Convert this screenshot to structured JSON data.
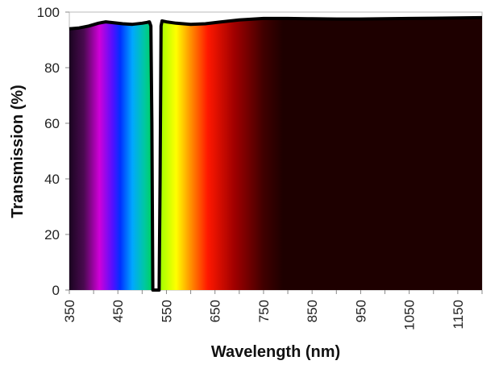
{
  "chart_data": {
    "type": "area",
    "title": "",
    "xlabel": "Wavelength (nm)",
    "ylabel": "Transmission (%)",
    "xlim": [
      350,
      1200
    ],
    "ylim": [
      0,
      100
    ],
    "x_ticks": [
      "350",
      "450",
      "550",
      "650",
      "750",
      "850",
      "950",
      "1050",
      "1150"
    ],
    "y_ticks": [
      "0",
      "20",
      "40",
      "60",
      "80",
      "100"
    ],
    "grid": false,
    "legend": "none",
    "series": [
      {
        "x": [
          350,
          370,
          390,
          410,
          425,
          440,
          460,
          480,
          500,
          510,
          515,
          518,
          520,
          522,
          530,
          535,
          537,
          539,
          541,
          550,
          570,
          600,
          630,
          660,
          700,
          750,
          800,
          850,
          900,
          950,
          1000,
          1050,
          1100,
          1150,
          1200
        ],
        "y": [
          94,
          94.3,
          95,
          96,
          96.5,
          96.2,
          95.8,
          95.6,
          96,
          96.3,
          96.5,
          95,
          60,
          0,
          0,
          0,
          40,
          95,
          96.8,
          96.5,
          96,
          95.6,
          95.8,
          96.4,
          97.2,
          97.7,
          97.7,
          97.6,
          97.5,
          97.5,
          97.6,
          97.7,
          97.8,
          97.9,
          98
        ]
      }
    ],
    "line_color": "#000000",
    "spectrum_fill": [
      {
        "nm": 350,
        "color": "#1a0420"
      },
      {
        "nm": 380,
        "color": "#4a0a50"
      },
      {
        "nm": 412,
        "color": "#d000d8"
      },
      {
        "nm": 440,
        "color": "#5010ff"
      },
      {
        "nm": 455,
        "color": "#0030ff"
      },
      {
        "nm": 480,
        "color": "#00a8ff"
      },
      {
        "nm": 505,
        "color": "#00c8a0"
      },
      {
        "nm": 520,
        "color": "#00d060"
      },
      {
        "nm": 540,
        "color": "#a8ff00"
      },
      {
        "nm": 570,
        "color": "#ffff00"
      },
      {
        "nm": 600,
        "color": "#ff9000"
      },
      {
        "nm": 635,
        "color": "#ff1800"
      },
      {
        "nm": 690,
        "color": "#a00000"
      },
      {
        "nm": 750,
        "color": "#400000"
      },
      {
        "nm": 790,
        "color": "#1e0000"
      },
      {
        "nm": 1200,
        "color": "#1e0000"
      }
    ]
  }
}
